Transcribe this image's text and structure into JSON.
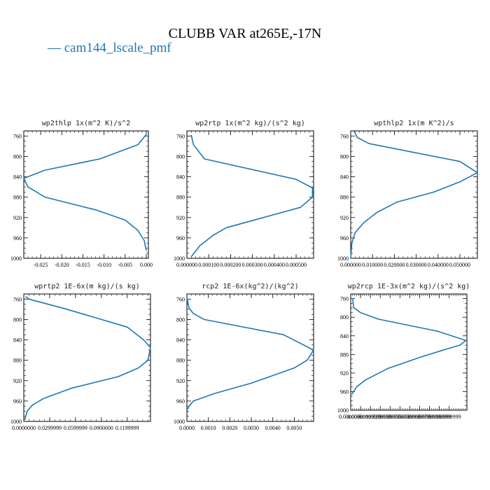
{
  "title": "CLUBB VAR at265E,-17N",
  "legend": {
    "marker": "—",
    "label": "cam144_lscale_pmf",
    "color": "#1f77b4"
  },
  "chart_data": [
    {
      "type": "line",
      "title": "wp2thlp   1x(m^2 K)/s^2",
      "xlim": [
        -0.029,
        0.0005
      ],
      "ylim": [
        1000,
        750
      ],
      "y_reversed": true,
      "xticks": [
        -0.025,
        -0.02,
        -0.015,
        -0.01,
        -0.005,
        0.0
      ],
      "xtick_labels": [
        "-0.025",
        "-0.020",
        "-0.015",
        "-0.010",
        "-0.005",
        "0.000"
      ],
      "yticks": [
        760,
        800,
        840,
        880,
        920,
        960,
        1000
      ],
      "series": [
        {
          "color": "#1f77b4",
          "x": [
            0.0,
            -0.002,
            -0.011,
            -0.024,
            -0.029,
            -0.028,
            -0.024,
            -0.012,
            -0.005,
            -0.002,
            -0.0005,
            0.0
          ],
          "y": [
            757,
            777,
            805,
            827,
            843,
            860,
            880,
            905,
            925,
            945,
            965,
            985
          ]
        }
      ]
    },
    {
      "type": "line",
      "title": "wp2rtp   1x(m^2 kg)/(s^2 kg)",
      "xlim": [
        0.0,
        0.00058
      ],
      "ylim": [
        1000,
        750
      ],
      "y_reversed": true,
      "xticks": [
        0.0,
        0.0001,
        0.0002,
        0.0003,
        0.0004,
        0.0005
      ],
      "xtick_labels": [
        "0.000000",
        "0.000100",
        "0.000200",
        "0.000300",
        "0.000400",
        "0.000500"
      ],
      "yticks": [
        760,
        800,
        840,
        880,
        920,
        960,
        1000
      ],
      "series": [
        {
          "color": "#1f77b4",
          "x": [
            2e-05,
            3e-05,
            8e-05,
            0.0005,
            0.000575,
            0.000575,
            0.00052,
            0.00035,
            0.00018,
            0.00012,
            6e-05,
            2e-05
          ],
          "y": [
            758,
            777,
            805,
            845,
            862,
            880,
            900,
            920,
            940,
            955,
            975,
            997
          ]
        }
      ]
    },
    {
      "type": "line",
      "title": "wpthlp2   1x(m K^2)/s",
      "xlim": [
        0.0,
        0.058
      ],
      "ylim": [
        1000,
        750
      ],
      "y_reversed": true,
      "xticks": [
        0.0,
        0.01,
        0.02,
        0.03,
        0.04,
        0.05
      ],
      "xtick_labels": [
        "0.000000",
        "0.010000",
        "0.020000",
        "0.030000",
        "0.040000",
        "0.050000"
      ],
      "yticks": [
        760,
        800,
        840,
        880,
        920,
        960,
        1000
      ],
      "series": [
        {
          "color": "#1f77b4",
          "x": [
            0.0015,
            0.003,
            0.0085,
            0.05,
            0.058,
            0.05,
            0.038,
            0.021,
            0.012,
            0.006,
            0.002,
            0.0005,
            0.0
          ],
          "y": [
            750,
            763,
            775,
            810,
            832,
            850,
            870,
            890,
            910,
            930,
            950,
            970,
            1000
          ]
        }
      ]
    },
    {
      "type": "line",
      "title": "wprtp2   1E-6x(m kg)/(s kg)",
      "xlim": [
        0.0,
        0.147
      ],
      "ylim": [
        1000,
        750
      ],
      "y_reversed": true,
      "xticks": [
        0.0,
        0.03,
        0.06,
        0.09,
        0.12
      ],
      "xtick_labels": [
        "0.0000000",
        "0.0299999",
        "0.0599999",
        "0.0900000",
        "0.1199999"
      ],
      "yticks": [
        760,
        800,
        840,
        880,
        920,
        960,
        1000
      ],
      "series": [
        {
          "color": "#1f77b4",
          "x": [
            0.002,
            0.006,
            0.05,
            0.12,
            0.139,
            0.147,
            0.144,
            0.133,
            0.11,
            0.055,
            0.023,
            0.01,
            0.004,
            0.001
          ],
          "y": [
            755,
            760,
            780,
            815,
            840,
            855,
            880,
            895,
            912,
            935,
            955,
            968,
            980,
            997
          ]
        }
      ]
    },
    {
      "type": "line",
      "title": "rcp2   1E-6x(kg^2)/(kg^2)",
      "xlim": [
        0.0,
        0.0059
      ],
      "ylim": [
        1000,
        750
      ],
      "y_reversed": true,
      "xticks": [
        0.0,
        0.001,
        0.002,
        0.003,
        0.004,
        0.005
      ],
      "xtick_labels": [
        "0.0000",
        "0.0010",
        "0.0020",
        "0.0030",
        "0.0040",
        "0.0050"
      ],
      "yticks": [
        760,
        800,
        840,
        880,
        920,
        960,
        1000
      ],
      "series": [
        {
          "color": "#1f77b4",
          "x": [
            0.0,
            0.0001,
            0.0003,
            0.0008,
            0.0045,
            0.0059,
            0.0056,
            0.005,
            0.004,
            0.003,
            0.0013,
            0.0003,
            0.0001,
            0.0
          ],
          "y": [
            757,
            778,
            788,
            800,
            830,
            860,
            880,
            895,
            910,
            925,
            945,
            960,
            970,
            978
          ]
        }
      ]
    },
    {
      "type": "line",
      "title": "wp2rcp   1E-3x(m^2 kg)/(s^2 kg)",
      "xlim": [
        0.0,
        0.118
      ],
      "ylim": [
        1000,
        750
      ],
      "y_reversed": true,
      "xticks": [
        0.0,
        0.01,
        0.02,
        0.03,
        0.04,
        0.05,
        0.06,
        0.07,
        0.08,
        0.09,
        0.1
      ],
      "xtick_labels": [
        "0.0000000",
        "0.00999999",
        "0.0199999",
        "0.0299999",
        "0.0399999",
        "0.0500000",
        "0.0599999",
        "0.0699999",
        "0.0799999",
        "0.0899999",
        "0.0999999"
      ],
      "yticks": [
        760,
        800,
        840,
        880,
        920,
        960,
        1000
      ],
      "series": [
        {
          "color": "#1f77b4",
          "x": [
            0.002,
            0.003,
            0.01,
            0.028,
            0.088,
            0.117,
            0.111,
            0.095,
            0.072,
            0.038,
            0.015,
            0.006,
            0.003,
            0.001
          ],
          "y": [
            760,
            779,
            790,
            804,
            830,
            850,
            860,
            870,
            885,
            910,
            935,
            950,
            960,
            966
          ]
        }
      ]
    }
  ]
}
